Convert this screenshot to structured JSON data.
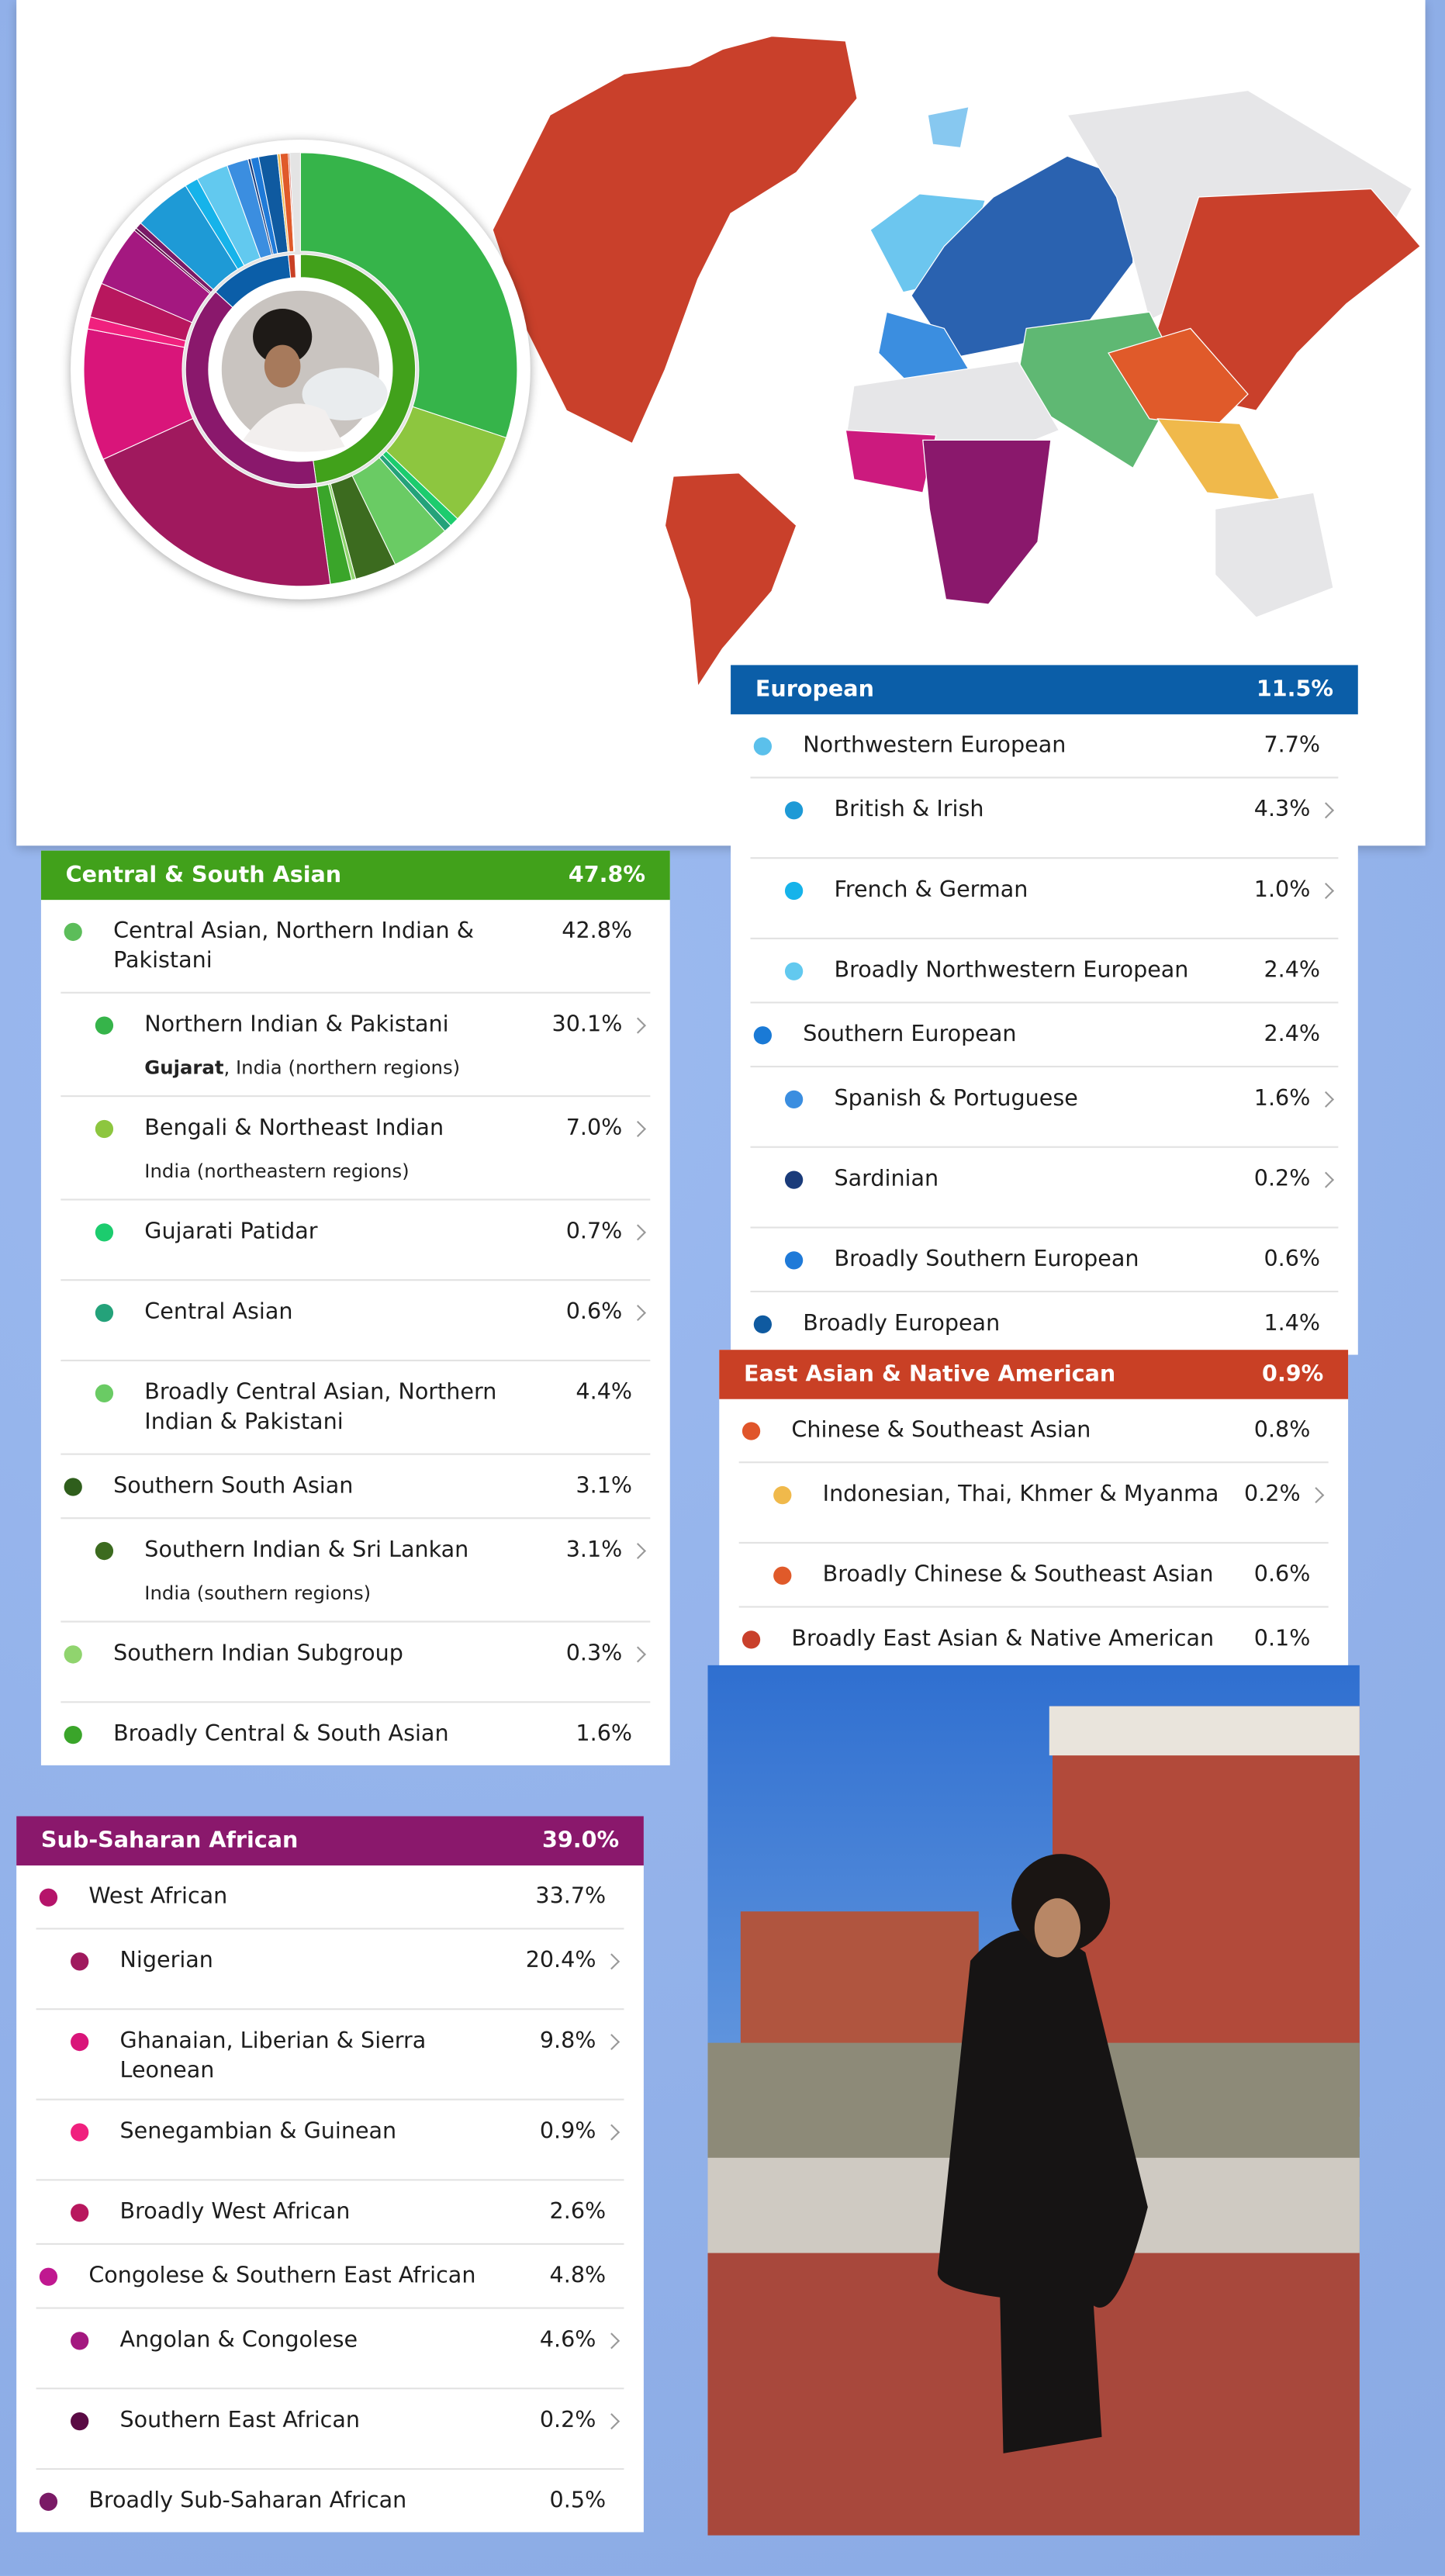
{
  "panels": [
    {
      "title": "Central & South Asian",
      "value": 47.8,
      "value_label": "47.8%",
      "color": "#41a11b",
      "rows": [
        {
          "label": "Central Asian, Northern Indian & Pakistani",
          "value": 42.8,
          "value_label": "42.8%",
          "color": "#5cbd5a",
          "children": [
            {
              "label": "Northern Indian & Pakistani",
              "value": 30.1,
              "value_label": "30.1%",
              "color": "#36b44a",
              "arrow": true,
              "note_bold": "Gujarat",
              "note": ", India (northern regions)"
            },
            {
              "label": "Bengali & Northeast Indian",
              "value": 7.0,
              "value_label": "7.0%",
              "color": "#8dc63f",
              "arrow": true,
              "note": "India (northeastern regions)"
            },
            {
              "label": "Gujarati Patidar",
              "value": 0.7,
              "value_label": "0.7%",
              "color": "#1ccc6e",
              "arrow": true
            },
            {
              "label": "Central Asian",
              "value": 0.6,
              "value_label": "0.6%",
              "color": "#24a27a",
              "arrow": true
            },
            {
              "label": "Broadly Central Asian, Northern Indian & Pakistani",
              "value": 4.4,
              "value_label": "4.4%",
              "color": "#6acb64"
            }
          ]
        },
        {
          "label": "Southern South Asian",
          "value": 3.1,
          "value_label": "3.1%",
          "color": "#2f5e1c",
          "children": [
            {
              "label": "Southern Indian & Sri Lankan",
              "value": 3.1,
              "value_label": "3.1%",
              "color": "#3c6b1f",
              "arrow": true,
              "note": "India (southern regions)"
            }
          ]
        },
        {
          "label": "Southern Indian Subgroup",
          "value": 0.3,
          "value_label": "0.3%",
          "color": "#90d46e",
          "arrow": true
        },
        {
          "label": "Broadly Central & South Asian",
          "value": 1.6,
          "value_label": "1.6%",
          "color": "#3aa52a"
        }
      ]
    },
    {
      "title": "Sub-Saharan African",
      "value": 39.0,
      "value_label": "39.0%",
      "color": "#8a186c",
      "rows": [
        {
          "label": "West African",
          "value": 33.7,
          "value_label": "33.7%",
          "color": "#b5146a",
          "children": [
            {
              "label": "Nigerian",
              "value": 20.4,
              "value_label": "20.4%",
              "color": "#a0195e",
              "arrow": true
            },
            {
              "label": "Ghanaian, Liberian & Sierra Leonean",
              "value": 9.8,
              "value_label": "9.8%",
              "color": "#d9157a",
              "arrow": true
            },
            {
              "label": "Senegambian & Guinean",
              "value": 0.9,
              "value_label": "0.9%",
              "color": "#f0207e",
              "arrow": true
            },
            {
              "label": "Broadly West African",
              "value": 2.6,
              "value_label": "2.6%",
              "color": "#b8175e"
            }
          ]
        },
        {
          "label": "Congolese & Southern East African",
          "value": 4.8,
          "value_label": "4.8%",
          "color": "#c01890",
          "children": [
            {
              "label": "Angolan & Congolese",
              "value": 4.6,
              "value_label": "4.6%",
              "color": "#a41880",
              "arrow": true
            },
            {
              "label": "Southern East African",
              "value": 0.2,
              "value_label": "0.2%",
              "color": "#5a0a44",
              "arrow": true
            }
          ]
        },
        {
          "label": "Broadly Sub-Saharan African",
          "value": 0.5,
          "value_label": "0.5%",
          "color": "#7a1a66"
        }
      ]
    },
    {
      "title": "European",
      "value": 11.5,
      "value_label": "11.5%",
      "color": "#0b5ea8",
      "rows": [
        {
          "label": "Northwestern European",
          "value": 7.7,
          "value_label": "7.7%",
          "color": "#5bc0eb",
          "children": [
            {
              "label": "British & Irish",
              "value": 4.3,
              "value_label": "4.3%",
              "color": "#1e9ad6",
              "arrow": true
            },
            {
              "label": "French & German",
              "value": 1.0,
              "value_label": "1.0%",
              "color": "#16b3ea",
              "arrow": true
            },
            {
              "label": "Broadly Northwestern European",
              "value": 2.4,
              "value_label": "2.4%",
              "color": "#62c9ef"
            }
          ]
        },
        {
          "label": "Southern European",
          "value": 2.4,
          "value_label": "2.4%",
          "color": "#1a7ad6",
          "children": [
            {
              "label": "Spanish & Portuguese",
              "value": 1.6,
              "value_label": "1.6%",
              "color": "#3b8ee0",
              "arrow": true
            },
            {
              "label": "Sardinian",
              "value": 0.2,
              "value_label": "0.2%",
              "color": "#1a3b7a",
              "arrow": true
            },
            {
              "label": "Broadly Southern European",
              "value": 0.6,
              "value_label": "0.6%",
              "color": "#1f7ad8"
            }
          ]
        },
        {
          "label": "Broadly European",
          "value": 1.4,
          "value_label": "1.4%",
          "color": "#0f5aa0"
        }
      ]
    },
    {
      "title": "East Asian & Native American",
      "value": 0.9,
      "value_label": "0.9%",
      "color": "#c94025",
      "rows": [
        {
          "label": "Chinese & Southeast Asian",
          "value": 0.8,
          "value_label": "0.8%",
          "color": "#e0552a",
          "children": [
            {
              "label": "Indonesian, Thai, Khmer & Myanma",
              "value": 0.2,
              "value_label": "0.2%",
              "color": "#f0b94b",
              "arrow": true
            },
            {
              "label": "Broadly Chinese & Southeast Asian",
              "value": 0.6,
              "value_label": "0.6%",
              "color": "#e05a2a"
            }
          ]
        },
        {
          "label": "Broadly East Asian & Native American",
          "value": 0.1,
          "value_label": "0.1%",
          "color": "#c9402b"
        }
      ]
    }
  ]
}
